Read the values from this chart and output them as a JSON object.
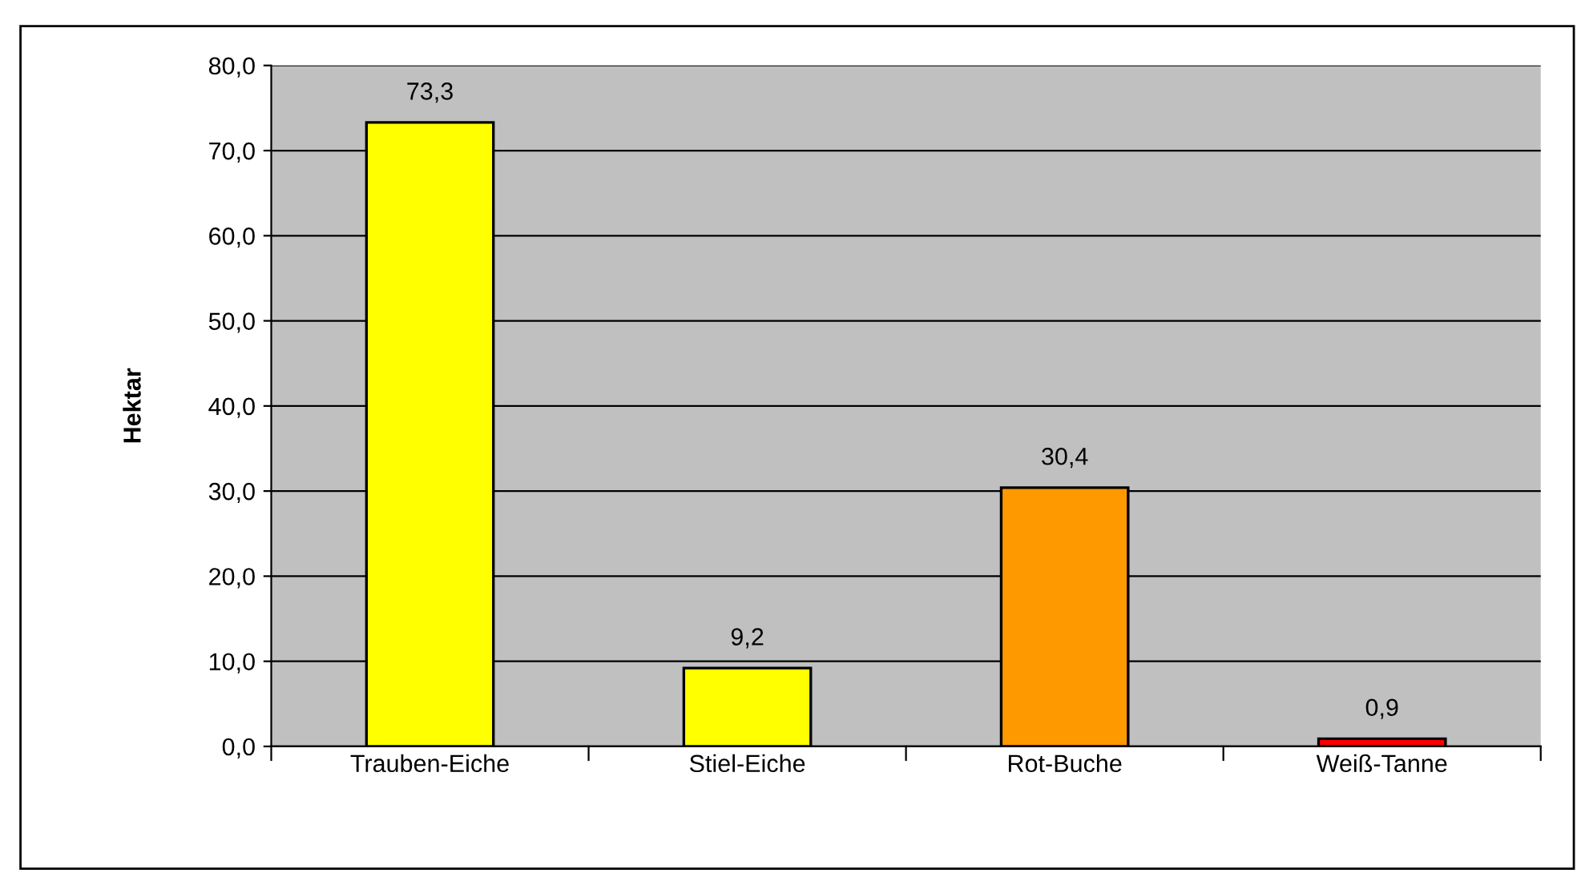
{
  "chart_data": {
    "type": "bar",
    "ylabel": "Hektar",
    "categories": [
      "Trauben-Eiche",
      "Stiel-Eiche",
      "Rot-Buche",
      "Weiß-Tanne"
    ],
    "values": [
      73.3,
      9.2,
      30.4,
      0.9
    ],
    "colors": [
      "#ffff00",
      "#ffff00",
      "#ff9900",
      "#ff0000"
    ],
    "value_labels": [
      "73,3",
      "9,2",
      "30,4",
      "0,9"
    ],
    "ylim": [
      0,
      80
    ],
    "yticks": [
      {
        "value": 0,
        "label": "0,0"
      },
      {
        "value": 10,
        "label": "10,0"
      },
      {
        "value": 20,
        "label": "20,0"
      },
      {
        "value": 30,
        "label": "30,0"
      },
      {
        "value": 40,
        "label": "40,0"
      },
      {
        "value": 50,
        "label": "50,0"
      },
      {
        "value": 60,
        "label": "60,0"
      },
      {
        "value": 70,
        "label": "70,0"
      },
      {
        "value": 80,
        "label": "80,0"
      }
    ],
    "grid": "y",
    "legend": false
  }
}
